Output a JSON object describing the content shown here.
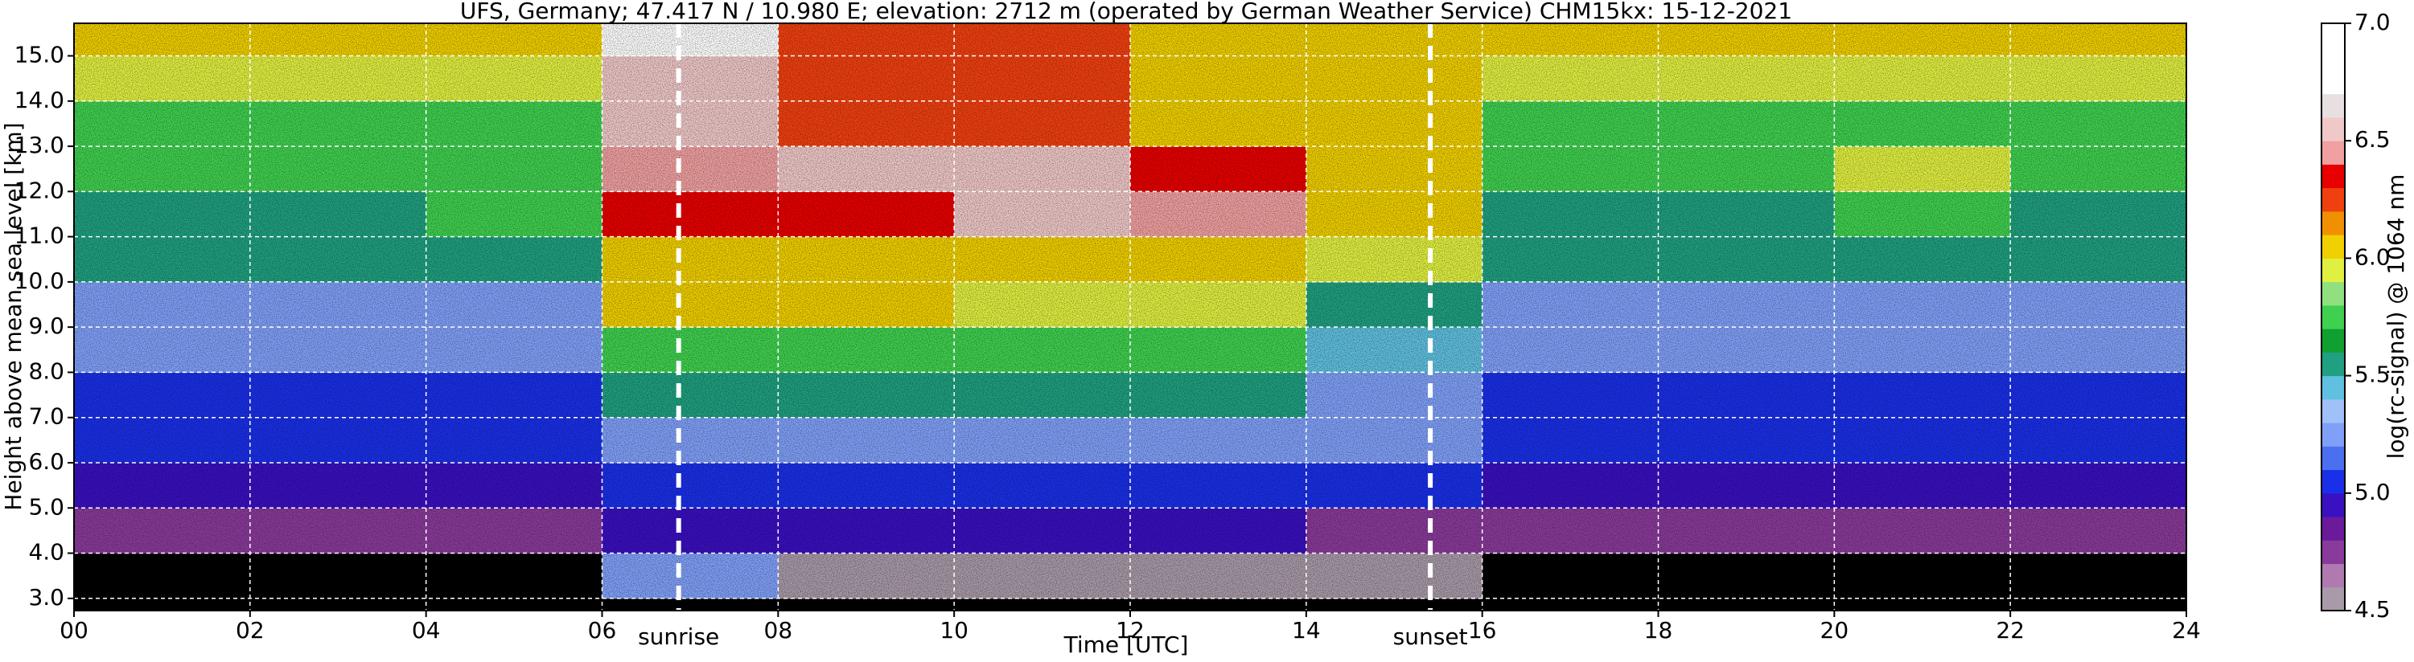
{
  "chart_data": {
    "type": "heatmap",
    "title": "UFS, Germany; 47.417 N / 10.980 E; elevation: 2712 m  (operated by German Weather Service)    CHM15kx: 15-12-2021",
    "x_label": "Time [UTC]",
    "y_label": "Height above mean sea level [km]",
    "xlim": [
      0,
      24
    ],
    "ylim": [
      2.73,
      15.72
    ],
    "xticks": [
      {
        "value": 0,
        "label": "00"
      },
      {
        "value": 2,
        "label": "02"
      },
      {
        "value": 4,
        "label": "04"
      },
      {
        "value": 6,
        "label": "06"
      },
      {
        "value": 8,
        "label": "08"
      },
      {
        "value": 10,
        "label": "10"
      },
      {
        "value": 12,
        "label": "12"
      },
      {
        "value": 14,
        "label": "14"
      },
      {
        "value": 16,
        "label": "16"
      },
      {
        "value": 18,
        "label": "18"
      },
      {
        "value": 20,
        "label": "20"
      },
      {
        "value": 22,
        "label": "22"
      },
      {
        "value": 24,
        "label": "24"
      }
    ],
    "yticks": [
      {
        "value": 3,
        "label": "3.0"
      },
      {
        "value": 4,
        "label": "4.0"
      },
      {
        "value": 5,
        "label": "5.0"
      },
      {
        "value": 6,
        "label": "6.0"
      },
      {
        "value": 7,
        "label": "7.0"
      },
      {
        "value": 8,
        "label": "8.0"
      },
      {
        "value": 9,
        "label": "9.0"
      },
      {
        "value": 10,
        "label": "10.0"
      },
      {
        "value": 11,
        "label": "11.0"
      },
      {
        "value": 12,
        "label": "12.0"
      },
      {
        "value": 13,
        "label": "13.0"
      },
      {
        "value": 14,
        "label": "14.0"
      },
      {
        "value": 15,
        "label": "15.0"
      }
    ],
    "grid": true,
    "x_edges": [
      0,
      2,
      4,
      6,
      8,
      10,
      12,
      14,
      16,
      18,
      20,
      22,
      24
    ],
    "y_edges": [
      3,
      4,
      5,
      6,
      7,
      8,
      9,
      10,
      11,
      12,
      13,
      14,
      15,
      16
    ],
    "values": [
      [
        4.4,
        4.4,
        4.4,
        5.2,
        4.6,
        4.5,
        4.5,
        4.5,
        4.4,
        4.4,
        4.4,
        4.4
      ],
      [
        4.7,
        4.7,
        4.7,
        4.9,
        4.9,
        4.9,
        4.9,
        4.8,
        4.7,
        4.7,
        4.7,
        4.7
      ],
      [
        4.9,
        4.9,
        4.9,
        5.1,
        5.1,
        5.1,
        5.1,
        5.0,
        4.9,
        4.9,
        4.9,
        4.9
      ],
      [
        5.0,
        5.0,
        5.0,
        5.3,
        5.3,
        5.3,
        5.3,
        5.2,
        5.0,
        5.0,
        5.0,
        5.0
      ],
      [
        5.1,
        5.1,
        5.1,
        5.6,
        5.6,
        5.5,
        5.5,
        5.3,
        5.1,
        5.1,
        5.1,
        5.1
      ],
      [
        5.2,
        5.2,
        5.2,
        5.8,
        5.8,
        5.8,
        5.7,
        5.4,
        5.2,
        5.2,
        5.2,
        5.2
      ],
      [
        5.3,
        5.3,
        5.3,
        6.0,
        6.0,
        5.9,
        5.9,
        5.6,
        5.3,
        5.3,
        5.3,
        5.3
      ],
      [
        5.5,
        5.5,
        5.5,
        6.1,
        6.1,
        6.1,
        6.1,
        5.9,
        5.5,
        5.5,
        5.5,
        5.5
      ],
      [
        5.6,
        5.6,
        5.7,
        6.3,
        6.3,
        6.5,
        6.4,
        6.0,
        5.6,
        5.6,
        5.7,
        5.6
      ],
      [
        5.7,
        5.7,
        5.8,
        6.4,
        6.5,
        6.6,
        6.3,
        6.0,
        5.7,
        5.7,
        5.9,
        5.8
      ],
      [
        5.8,
        5.8,
        5.8,
        6.5,
        6.2,
        6.2,
        6.1,
        6.0,
        5.8,
        5.8,
        5.8,
        5.8
      ],
      [
        5.9,
        5.9,
        5.9,
        6.6,
        6.2,
        6.2,
        6.1,
        6.0,
        5.9,
        5.9,
        5.9,
        5.9
      ],
      [
        6.0,
        6.0,
        6.0,
        6.7,
        6.2,
        6.2,
        6.1,
        6.0,
        6.0,
        6.0,
        6.0,
        6.0
      ]
    ],
    "annotations": [
      {
        "x": 6.87,
        "label": "sunrise"
      },
      {
        "x": 15.41,
        "label": "sunset"
      }
    ],
    "colorbar": {
      "label": "log(rc-signal) @ 1064 nm",
      "lim": [
        4.5,
        7.0
      ],
      "ticks": [
        4.5,
        {
          "value": 5,
          "label": "5.0"
        },
        5.5,
        {
          "value": 6,
          "label": "6.0"
        },
        6.5,
        {
          "value": 7,
          "label": "7.0"
        }
      ],
      "under_color": "#000000",
      "colors": [
        "#a89aa8",
        "#b07ab0",
        "#8a3a9a",
        "#6a1a9a",
        "#3a10c0",
        "#1a30e8",
        "#4a70f0",
        "#80a0f8",
        "#a0c0f8",
        "#60c0e0",
        "#20a080",
        "#10a030",
        "#40d050",
        "#90e080",
        "#e0f040",
        "#f0d000",
        "#f09000",
        "#f04010",
        "#e80000",
        "#f0a0a0",
        "#f0c8c8",
        "#e8e0e0",
        "#ffffff",
        "#ffffff",
        "#ffffff"
      ]
    }
  }
}
